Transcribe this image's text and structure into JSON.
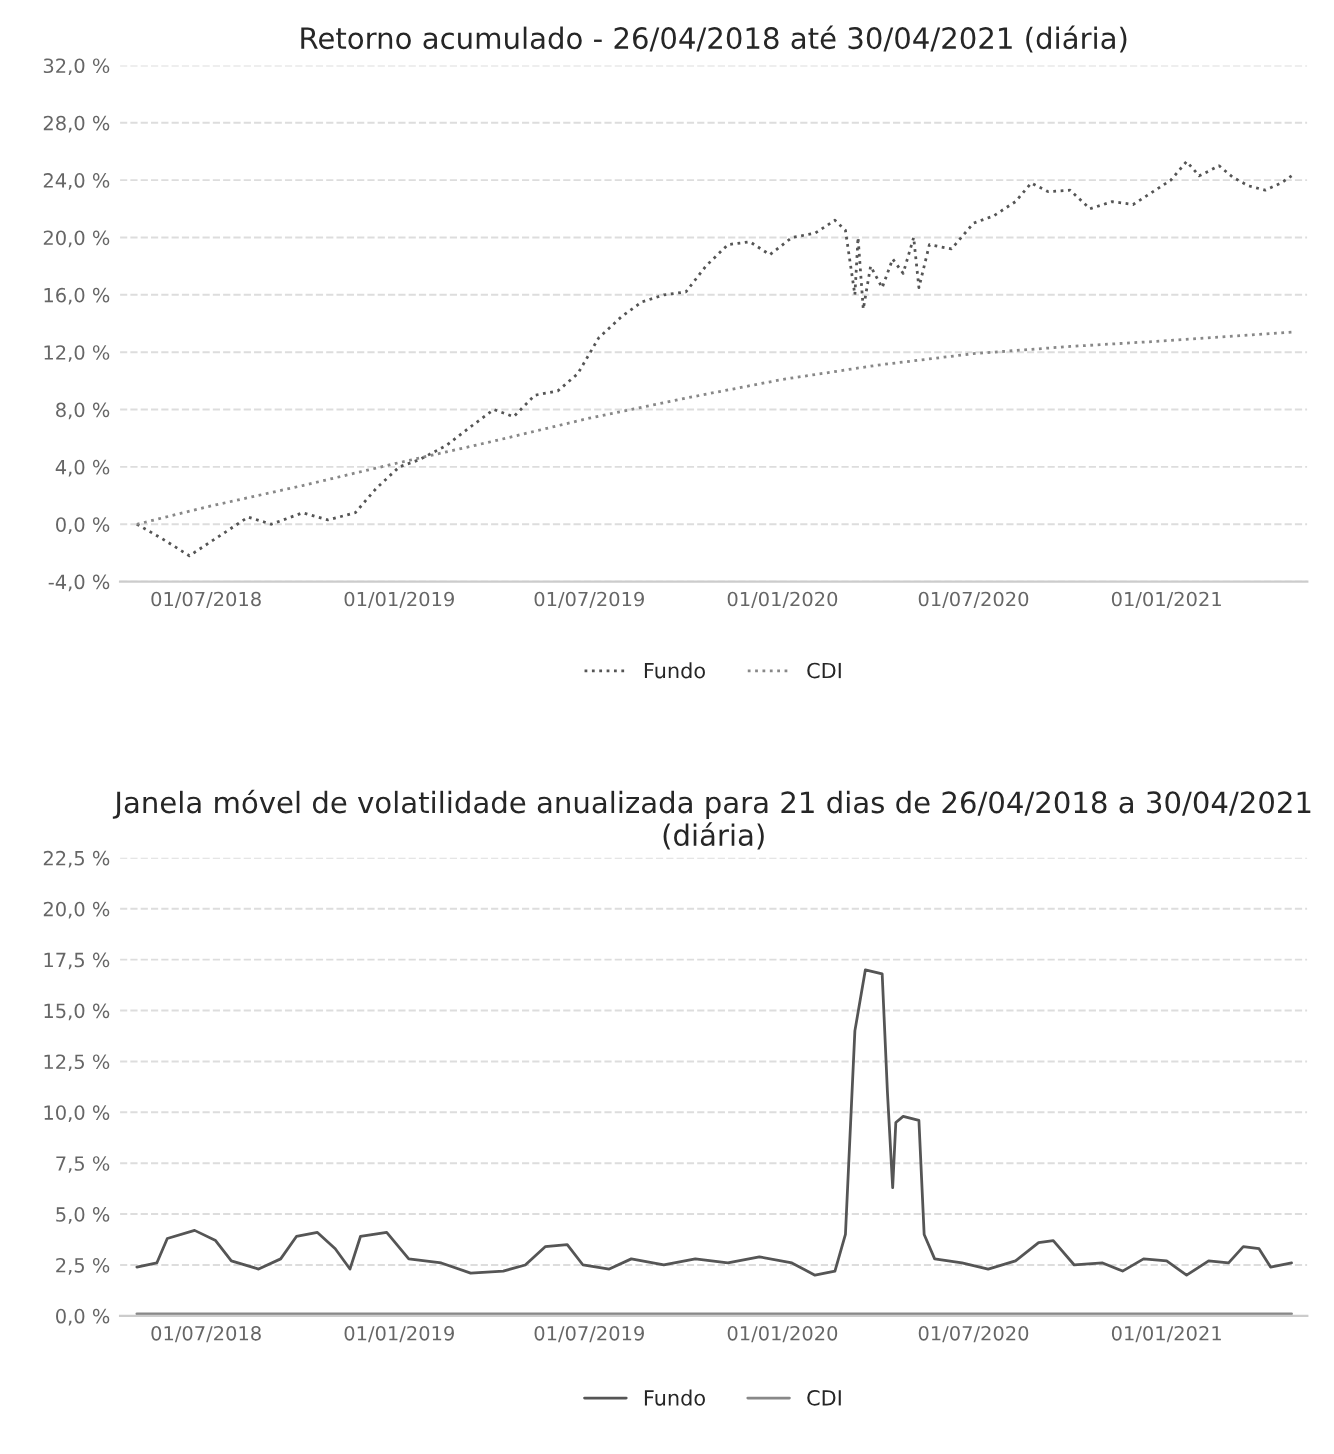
{
  "chart_data": [
    {
      "type": "line",
      "title": "Retorno acumulado - 26/04/2018 até 30/04/2021 (diária)",
      "line_style": "dotted",
      "grid": "y",
      "legend": "bottom",
      "xlim": [
        "2018-04-10",
        "2021-05-15"
      ],
      "xticks": [
        {
          "value": "2018-07-01",
          "label": "01/07/2018"
        },
        {
          "value": "2019-01-01",
          "label": "01/01/2019"
        },
        {
          "value": "2019-07-01",
          "label": "01/07/2019"
        },
        {
          "value": "2020-01-01",
          "label": "01/01/2020"
        },
        {
          "value": "2020-07-01",
          "label": "01/07/2020"
        },
        {
          "value": "2021-01-01",
          "label": "01/01/2021"
        }
      ],
      "ylim": [
        -4,
        32
      ],
      "yticks": [
        {
          "value": -4,
          "label": "-4,0 %"
        },
        {
          "value": 0,
          "label": "0,0 %"
        },
        {
          "value": 4,
          "label": "4,0 %"
        },
        {
          "value": 8,
          "label": "8,0 %"
        },
        {
          "value": 12,
          "label": "12,0 %"
        },
        {
          "value": 16,
          "label": "16,0 %"
        },
        {
          "value": 20,
          "label": "20,0 %"
        },
        {
          "value": 24,
          "label": "24,0 %"
        },
        {
          "value": 28,
          "label": "28,0 %"
        },
        {
          "value": 32,
          "label": "32,0 %"
        }
      ],
      "series": [
        {
          "name": "Fundo",
          "color": "#555555",
          "x": [
            "2018-04-26",
            "2018-05-20",
            "2018-06-15",
            "2018-07-10",
            "2018-08-10",
            "2018-09-01",
            "2018-10-01",
            "2018-10-25",
            "2018-11-20",
            "2018-12-10",
            "2019-01-01",
            "2019-01-20",
            "2019-02-15",
            "2019-03-10",
            "2019-04-01",
            "2019-04-20",
            "2019-05-10",
            "2019-06-01",
            "2019-06-20",
            "2019-07-10",
            "2019-08-01",
            "2019-08-20",
            "2019-09-10",
            "2019-10-01",
            "2019-10-20",
            "2019-11-10",
            "2019-12-01",
            "2019-12-20",
            "2020-01-10",
            "2020-02-01",
            "2020-02-20",
            "2020-03-01",
            "2020-03-10",
            "2020-03-13",
            "2020-03-18",
            "2020-03-25",
            "2020-04-05",
            "2020-04-15",
            "2020-04-25",
            "2020-05-05",
            "2020-05-10",
            "2020-05-20",
            "2020-06-10",
            "2020-07-01",
            "2020-07-20",
            "2020-08-10",
            "2020-08-25",
            "2020-09-10",
            "2020-10-01",
            "2020-10-20",
            "2020-11-10",
            "2020-11-30",
            "2020-12-15",
            "2021-01-05",
            "2021-01-20",
            "2021-02-01",
            "2021-02-20",
            "2021-03-05",
            "2021-03-20",
            "2021-04-05",
            "2021-04-20",
            "2021-04-30"
          ],
          "values": [
            0,
            -1.0,
            -2.2,
            -1.0,
            0.5,
            0.0,
            0.8,
            0.3,
            0.8,
            2.5,
            4.0,
            4.5,
            5.5,
            6.8,
            8.0,
            7.5,
            9.0,
            9.3,
            10.5,
            13.0,
            14.5,
            15.5,
            16.0,
            16.2,
            18.0,
            19.5,
            19.7,
            18.8,
            20.0,
            20.3,
            21.2,
            20.5,
            16.0,
            20.0,
            15.0,
            18.0,
            16.5,
            18.5,
            17.5,
            20.0,
            16.5,
            19.5,
            19.2,
            21.0,
            21.5,
            22.5,
            23.8,
            23.2,
            23.3,
            22.0,
            22.5,
            22.3,
            23.0,
            24.0,
            25.3,
            24.3,
            25.0,
            24.2,
            23.6,
            23.3,
            23.8,
            24.3
          ]
        },
        {
          "name": "CDI",
          "color": "#888888",
          "x": [
            "2018-04-26",
            "2018-07-01",
            "2018-10-01",
            "2019-01-01",
            "2019-04-01",
            "2019-07-01",
            "2019-10-01",
            "2020-01-01",
            "2020-04-01",
            "2020-07-01",
            "2020-10-01",
            "2021-01-01",
            "2021-04-30"
          ],
          "values": [
            0,
            1.2,
            2.7,
            4.3,
            5.8,
            7.4,
            8.8,
            10.1,
            11.1,
            11.9,
            12.4,
            12.8,
            13.4
          ]
        }
      ]
    },
    {
      "type": "line",
      "title": "Janela móvel de volatilidade anualizada para 21 dias de 26/04/2018 a 30/04/2021 (diária)",
      "line_style": "solid",
      "grid": "y",
      "legend": "bottom",
      "xlim": [
        "2018-04-10",
        "2021-05-15"
      ],
      "xticks": [
        {
          "value": "2018-07-01",
          "label": "01/07/2018"
        },
        {
          "value": "2019-01-01",
          "label": "01/01/2019"
        },
        {
          "value": "2019-07-01",
          "label": "01/07/2019"
        },
        {
          "value": "2020-01-01",
          "label": "01/01/2020"
        },
        {
          "value": "2020-07-01",
          "label": "01/07/2020"
        },
        {
          "value": "2021-01-01",
          "label": "01/01/2021"
        }
      ],
      "ylim": [
        0,
        22.5
      ],
      "yticks": [
        {
          "value": 0,
          "label": "0,0 %"
        },
        {
          "value": 2.5,
          "label": "2,5 %"
        },
        {
          "value": 5,
          "label": "5,0 %"
        },
        {
          "value": 7.5,
          "label": "7,5 %"
        },
        {
          "value": 10,
          "label": "10,0 %"
        },
        {
          "value": 12.5,
          "label": "12,5 %"
        },
        {
          "value": 15,
          "label": "15,0 %"
        },
        {
          "value": 17.5,
          "label": "17,5 %"
        },
        {
          "value": 20,
          "label": "20,0 %"
        },
        {
          "value": 22.5,
          "label": "22,5 %"
        }
      ],
      "series": [
        {
          "name": "Fundo",
          "color": "#555555",
          "x": [
            "2018-04-26",
            "2018-05-15",
            "2018-05-25",
            "2018-06-20",
            "2018-07-10",
            "2018-07-25",
            "2018-08-20",
            "2018-09-10",
            "2018-09-25",
            "2018-10-15",
            "2018-11-01",
            "2018-11-15",
            "2018-11-25",
            "2018-12-20",
            "2019-01-10",
            "2019-02-10",
            "2019-03-10",
            "2019-04-10",
            "2019-05-01",
            "2019-05-20",
            "2019-06-10",
            "2019-06-25",
            "2019-07-20",
            "2019-08-10",
            "2019-09-10",
            "2019-10-10",
            "2019-11-10",
            "2019-12-10",
            "2020-01-10",
            "2020-02-01",
            "2020-02-20",
            "2020-03-01",
            "2020-03-10",
            "2020-03-20",
            "2020-04-05",
            "2020-04-10",
            "2020-04-15",
            "2020-04-18",
            "2020-04-25",
            "2020-05-10",
            "2020-05-15",
            "2020-05-25",
            "2020-06-20",
            "2020-07-15",
            "2020-08-10",
            "2020-09-01",
            "2020-09-15",
            "2020-10-05",
            "2020-11-01",
            "2020-11-20",
            "2020-12-10",
            "2021-01-01",
            "2021-01-20",
            "2021-02-10",
            "2021-03-01",
            "2021-03-15",
            "2021-03-30",
            "2021-04-10",
            "2021-04-30"
          ],
          "values": [
            2.4,
            2.6,
            3.8,
            4.2,
            3.7,
            2.7,
            2.3,
            2.8,
            3.9,
            4.1,
            3.3,
            2.3,
            3.9,
            4.1,
            2.8,
            2.6,
            2.1,
            2.2,
            2.5,
            3.4,
            3.5,
            2.5,
            2.3,
            2.8,
            2.5,
            2.8,
            2.6,
            2.9,
            2.6,
            2.0,
            2.2,
            4.0,
            14.0,
            17.0,
            16.8,
            11.0,
            6.3,
            9.5,
            9.8,
            9.6,
            4.0,
            2.8,
            2.6,
            2.3,
            2.7,
            3.6,
            3.7,
            2.5,
            2.6,
            2.2,
            2.8,
            2.7,
            2.0,
            2.7,
            2.6,
            3.4,
            3.3,
            2.4,
            2.6
          ]
        },
        {
          "name": "CDI",
          "color": "#888888",
          "x": [
            "2018-04-26",
            "2018-10-01",
            "2019-04-01",
            "2019-10-01",
            "2020-04-01",
            "2020-10-01",
            "2021-04-30"
          ],
          "values": [
            0.1,
            0.1,
            0.1,
            0.1,
            0.1,
            0.1,
            0.1
          ]
        }
      ]
    }
  ]
}
